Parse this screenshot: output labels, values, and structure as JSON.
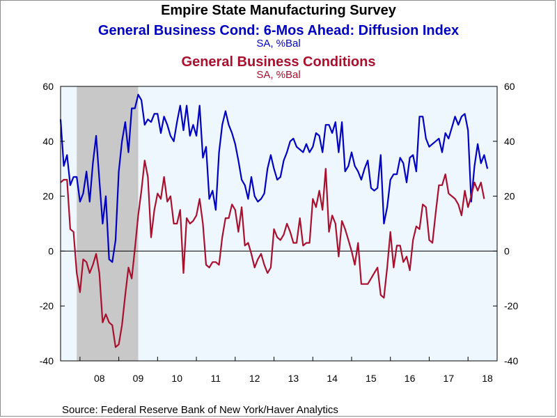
{
  "chart_data": {
    "type": "line",
    "title": "Empire State Manufacturing Survey",
    "xlabel": "",
    "ylabel": "",
    "ylim": [
      -40,
      60
    ],
    "xlim": [
      2007.5,
      2018.75
    ],
    "yticks": [
      "60",
      "40",
      "20",
      "0",
      "-20",
      "-40"
    ],
    "yticks_right": [
      "60",
      "40",
      "20",
      "0",
      "-20",
      "-40"
    ],
    "xticks": [
      {
        "label": "08",
        "x": 2008.5
      },
      {
        "label": "09",
        "x": 2009.5
      },
      {
        "label": "10",
        "x": 2010.5
      },
      {
        "label": "11",
        "x": 2011.5
      },
      {
        "label": "12",
        "x": 2012.5
      },
      {
        "label": "13",
        "x": 2013.5
      },
      {
        "label": "14",
        "x": 2014.5
      },
      {
        "label": "15",
        "x": 2015.5
      },
      {
        "label": "16",
        "x": 2016.5
      },
      {
        "label": "17",
        "x": 2017.5
      },
      {
        "label": "18",
        "x": 2018.5
      }
    ],
    "recession": {
      "start": 2007.917,
      "end": 2009.5
    },
    "grid": false,
    "zero_line": true,
    "series": [
      {
        "name": "General Business Cond: 6-Mos Ahead: Diffusion Index",
        "unit": "SA, %Bal",
        "color": "#0000c0",
        "start": 2007.5,
        "values": [
          48,
          31,
          35,
          24,
          27,
          27,
          18,
          21,
          29,
          18,
          32,
          42,
          26,
          10,
          20,
          -3,
          -4,
          4,
          29,
          40,
          47,
          36,
          52,
          52,
          57,
          55,
          46,
          48,
          47,
          50,
          50,
          43,
          49,
          46,
          42,
          40,
          47,
          53,
          44,
          53,
          42,
          46,
          42,
          53,
          34,
          38,
          19,
          22,
          15,
          36,
          46,
          51,
          46,
          43,
          39,
          33,
          26,
          24,
          19,
          27,
          20,
          18,
          19,
          21,
          30,
          35,
          30,
          26,
          27,
          33,
          36,
          40,
          41,
          38,
          37,
          36,
          39,
          36,
          38,
          43,
          42,
          36,
          46,
          46,
          43,
          47,
          36,
          47,
          29,
          31,
          36,
          31,
          29,
          26,
          30,
          33,
          23,
          22,
          23,
          35,
          10,
          16,
          26,
          28,
          28,
          34,
          32,
          25,
          34,
          35,
          29,
          49,
          49,
          41,
          38,
          39,
          40,
          41,
          36,
          43,
          41,
          45,
          49,
          46,
          49,
          50,
          44,
          18,
          31,
          39,
          32,
          35,
          30
        ]
      },
      {
        "name": "General Business Conditions",
        "unit": "SA, %Bal",
        "color": "#a8102e",
        "start": 2007.5,
        "values": [
          25,
          26,
          26,
          8,
          7,
          -8,
          -15,
          -3,
          -4,
          -8,
          -5,
          -1,
          -8,
          -26,
          -23,
          -26,
          -27,
          -35,
          -34,
          -27,
          -16,
          -6,
          -10,
          1,
          13,
          22,
          33,
          27,
          5,
          15,
          21,
          19,
          27,
          18,
          20,
          10,
          10,
          15,
          -8,
          12,
          10,
          11,
          13,
          19,
          10,
          -5,
          -6,
          -4,
          -4,
          -5,
          5,
          12,
          12,
          17,
          15,
          7,
          16,
          2,
          3,
          -1,
          -6,
          -3,
          -1,
          -5,
          -8,
          -6,
          8,
          5,
          4,
          6,
          10,
          7,
          3,
          3,
          12,
          2,
          3,
          3,
          19,
          16,
          22,
          15,
          30,
          7,
          13,
          10,
          -2,
          11,
          8,
          4,
          0,
          -5,
          3,
          -12,
          -12,
          -12,
          -10,
          -8,
          -6,
          -16,
          -17,
          -6,
          7,
          -6,
          2,
          2,
          -4,
          -2,
          -7,
          4,
          9,
          8,
          17,
          16,
          4,
          3,
          14,
          24,
          24,
          28,
          21,
          20,
          19,
          17,
          13,
          22,
          16,
          20,
          25,
          22,
          25,
          19
        ]
      }
    ]
  },
  "header": {
    "title": "Empire State Manufacturing Survey",
    "series1_title": "General Business Cond: 6-Mos Ahead: Diffusion Index",
    "series1_unit": "SA, %Bal",
    "series2_title": "General Business Conditions",
    "series2_unit": "SA, %Bal"
  },
  "source": "Source:  Federal Reserve Bank of New York/Haver Analytics",
  "colors": {
    "plot_bg": "#eef6fe",
    "recession": "#c8c8c8",
    "axis": "#000000",
    "series1": "#0000c0",
    "series2": "#a8102e"
  }
}
